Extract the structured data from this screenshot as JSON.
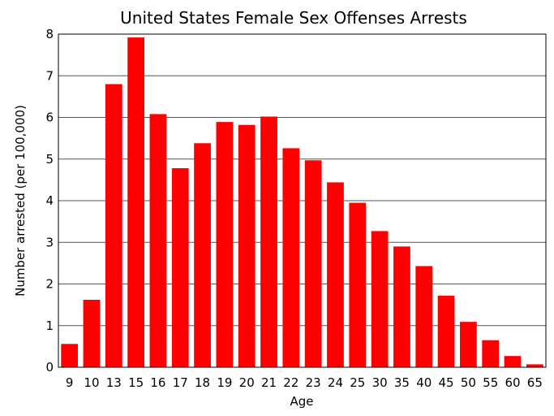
{
  "chart_data": {
    "type": "bar",
    "title": "United States Female Sex Offenses Arrests",
    "xlabel": "Age",
    "ylabel": "Number arrested (per 100,000)",
    "categories": [
      "9",
      "10",
      "13",
      "15",
      "16",
      "17",
      "18",
      "19",
      "20",
      "21",
      "22",
      "23",
      "24",
      "25",
      "30",
      "35",
      "40",
      "45",
      "50",
      "55",
      "60",
      "65"
    ],
    "values": [
      0.56,
      1.62,
      6.8,
      7.92,
      6.08,
      4.78,
      5.38,
      5.89,
      5.82,
      6.02,
      5.26,
      4.97,
      4.44,
      3.95,
      3.27,
      2.9,
      2.43,
      1.72,
      1.09,
      0.65,
      0.27,
      0.07
    ],
    "ylim": [
      0,
      8
    ],
    "yticks": [
      "0",
      "1",
      "2",
      "3",
      "4",
      "5",
      "6",
      "7",
      "8"
    ],
    "grid": true,
    "bar_color": "#ff0000"
  }
}
